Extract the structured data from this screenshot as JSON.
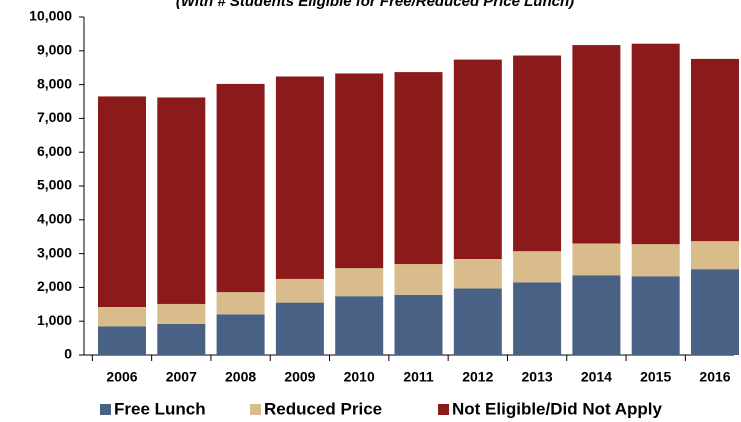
{
  "chart_data": {
    "type": "stacked-bar",
    "subtitle": "(With # Students Eligible for Free/Reduced Price Lunch)",
    "categories": [
      "2006",
      "2007",
      "2008",
      "2009",
      "2010",
      "2011",
      "2012",
      "2013",
      "2014",
      "2015",
      "2016"
    ],
    "series": [
      {
        "name": "Free Lunch",
        "color": "#4a6186",
        "values": [
          850,
          920,
          1200,
          1550,
          1740,
          1780,
          1970,
          2150,
          2360,
          2330,
          2540
        ]
      },
      {
        "name": "Reduced Price",
        "color": "#d9bc8c",
        "values": [
          570,
          590,
          660,
          700,
          830,
          910,
          870,
          920,
          940,
          950,
          830
        ]
      },
      {
        "name": "Not Eligible/Did Not Apply",
        "color": "#8b1a1a",
        "values": [
          6230,
          6110,
          6160,
          5990,
          5760,
          5680,
          5900,
          5790,
          5870,
          5930,
          5390
        ]
      }
    ],
    "ylim": [
      0,
      10000
    ],
    "yticks": [
      0,
      {
        "value": 1000,
        "label": "1,000"
      },
      {
        "value": 2000,
        "label": "2,000"
      },
      {
        "value": 3000,
        "label": "3,000"
      },
      {
        "value": 4000,
        "label": "4,000"
      },
      {
        "value": 5000,
        "label": "5,000"
      },
      {
        "value": 6000,
        "label": "6,000"
      },
      {
        "value": 7000,
        "label": "7,000"
      },
      {
        "value": 8000,
        "label": "8,000"
      },
      {
        "value": 9000,
        "label": "9,000"
      },
      {
        "value": 10000,
        "label": "10,000"
      }
    ],
    "grid": false
  }
}
